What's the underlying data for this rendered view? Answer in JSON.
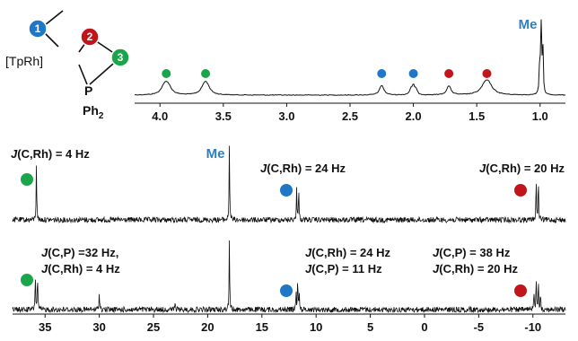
{
  "colors": {
    "blue": "#1f77c8",
    "red": "#c0161b",
    "green": "#1aa54b",
    "me": "#2f7ec2"
  },
  "structure": {
    "bracket_label": "[TpRh]",
    "p_label": "P",
    "ph_label": "Ph",
    "ph_subscript": "2",
    "badges": [
      {
        "num": "1",
        "color": "blue"
      },
      {
        "num": "2",
        "color": "red"
      },
      {
        "num": "3",
        "color": "green"
      }
    ]
  },
  "chart_data": [
    {
      "type": "line",
      "name": "1H spectrum",
      "xlim": [
        4.2,
        0.8
      ],
      "x_reversed": true,
      "xticks": [
        "4.0",
        "3.5",
        "3.0",
        "2.5",
        "2.0",
        "1.5",
        "1.0"
      ],
      "peaks": [
        {
          "x": 3.95,
          "h": 0.1,
          "w": 0.03,
          "mult": 3,
          "sp": 0.02
        },
        {
          "x": 3.64,
          "h": 0.1,
          "w": 0.03,
          "mult": 2,
          "sp": 0.02
        },
        {
          "x": 2.25,
          "h": 0.13,
          "w": 0.02,
          "mult": 1,
          "sp": 0
        },
        {
          "x": 2.0,
          "h": 0.11,
          "w": 0.012,
          "mult": 3,
          "sp": 0.02
        },
        {
          "x": 1.72,
          "h": 0.12,
          "w": 0.02,
          "mult": 1,
          "sp": 0
        },
        {
          "x": 1.42,
          "h": 0.11,
          "w": 0.04,
          "mult": 2,
          "sp": 0.025
        },
        {
          "x": 0.99,
          "h": 1.0,
          "w": 0.004,
          "mult": 3,
          "sp": 0.012
        }
      ],
      "markers": [
        {
          "x": 3.95,
          "color": "green"
        },
        {
          "x": 3.64,
          "color": "green"
        },
        {
          "x": 2.25,
          "color": "blue"
        },
        {
          "x": 2.0,
          "color": "blue"
        },
        {
          "x": 1.72,
          "color": "red"
        },
        {
          "x": 1.42,
          "color": "red"
        }
      ],
      "label": "Me"
    },
    {
      "type": "line",
      "name": "13C spectrum A",
      "xlim": [
        38,
        -13
      ],
      "x_reversed": true,
      "peaks": [
        {
          "x": 35.8,
          "h": 0.75,
          "w": 0.03,
          "mult": 1,
          "sp": 0
        },
        {
          "x": 18.0,
          "h": 1.0,
          "w": 0.03,
          "mult": 1,
          "sp": 0
        },
        {
          "x": 11.7,
          "h": 0.42,
          "w": 0.03,
          "mult": 2,
          "sp": 0.2
        },
        {
          "x": -10.4,
          "h": 0.52,
          "w": 0.03,
          "mult": 2,
          "sp": 0.2
        }
      ],
      "annotations": [
        {
          "text": "J(C,Rh) = 4 Hz",
          "marker": "green"
        },
        {
          "text": "Me",
          "marker": null
        },
        {
          "text": "J(C,Rh) = 24 Hz",
          "marker": "blue"
        },
        {
          "text": "J(C,Rh) = 20 Hz",
          "marker": "red"
        }
      ]
    },
    {
      "type": "line",
      "name": "13C spectrum B",
      "xlim": [
        38,
        -13
      ],
      "x_reversed": true,
      "xticks": [
        "35",
        "30",
        "25",
        "20",
        "15",
        "10",
        "5",
        "0",
        "-5",
        "-10"
      ],
      "peaks": [
        {
          "x": 35.8,
          "h": 0.5,
          "w": 0.03,
          "mult": 2,
          "sp": 0.2
        },
        {
          "x": 30.0,
          "h": 0.22,
          "w": 0.04,
          "mult": 1,
          "sp": 0
        },
        {
          "x": 23.0,
          "h": 0.08,
          "w": 0.04,
          "mult": 1,
          "sp": 0
        },
        {
          "x": 18.0,
          "h": 1.0,
          "w": 0.03,
          "mult": 1,
          "sp": 0
        },
        {
          "x": 11.7,
          "h": 0.42,
          "w": 0.03,
          "mult": 3,
          "sp": 0.15
        },
        {
          "x": -10.4,
          "h": 0.42,
          "w": 0.03,
          "mult": 4,
          "sp": 0.2
        }
      ],
      "annotations": [
        {
          "lines": [
            "J(C,P) =32 Hz,",
            "J(C,Rh) = 4 Hz"
          ],
          "marker": "green"
        },
        {
          "lines": [
            "J(C,Rh) = 24 Hz",
            "J(C,P) = 11 Hz"
          ],
          "marker": "blue"
        },
        {
          "lines": [
            "J(C,P) = 38 Hz",
            "J(C,Rh) = 20 Hz"
          ],
          "marker": "red"
        }
      ]
    }
  ]
}
